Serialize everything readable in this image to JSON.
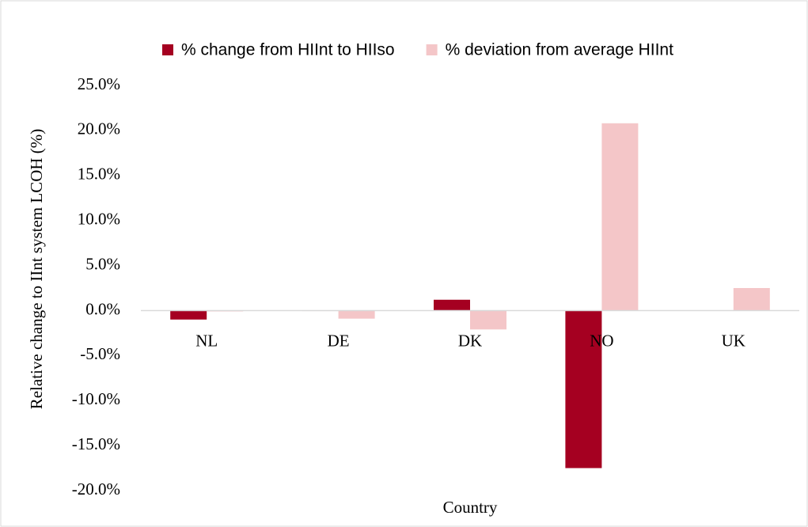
{
  "chart_data": {
    "type": "bar",
    "y_label": "Relative change to IInt system LCOH (%)",
    "x_label": "Country",
    "categories": [
      "NL",
      "DE",
      "DK",
      "NO",
      "UK"
    ],
    "series": [
      {
        "name": "% change from HIInt to HIIso",
        "color": "#a50021",
        "values": [
          -1.0,
          -0.05,
          1.2,
          -17.5,
          0
        ]
      },
      {
        "name": "% deviation from average HIInt",
        "color": "#f4c6c8",
        "values": [
          -0.1,
          -0.9,
          -2.1,
          20.8,
          2.5
        ]
      }
    ],
    "ylim": [
      -20,
      25
    ],
    "yticks": [
      {
        "value": -20,
        "label": "-20.0%"
      },
      {
        "value": -15,
        "label": "-15.0%"
      },
      {
        "value": -10,
        "label": "-10.0%"
      },
      {
        "value": -5,
        "label": "-5.0%"
      },
      {
        "value": 0,
        "label": "0.0%"
      },
      {
        "value": 5,
        "label": "5.0%"
      },
      {
        "value": 10,
        "label": "10.0%"
      },
      {
        "value": 15,
        "label": "15.0%"
      },
      {
        "value": 20,
        "label": "20.0%"
      },
      {
        "value": 25,
        "label": "25.0%"
      }
    ],
    "grid": false,
    "legend": "top"
  }
}
